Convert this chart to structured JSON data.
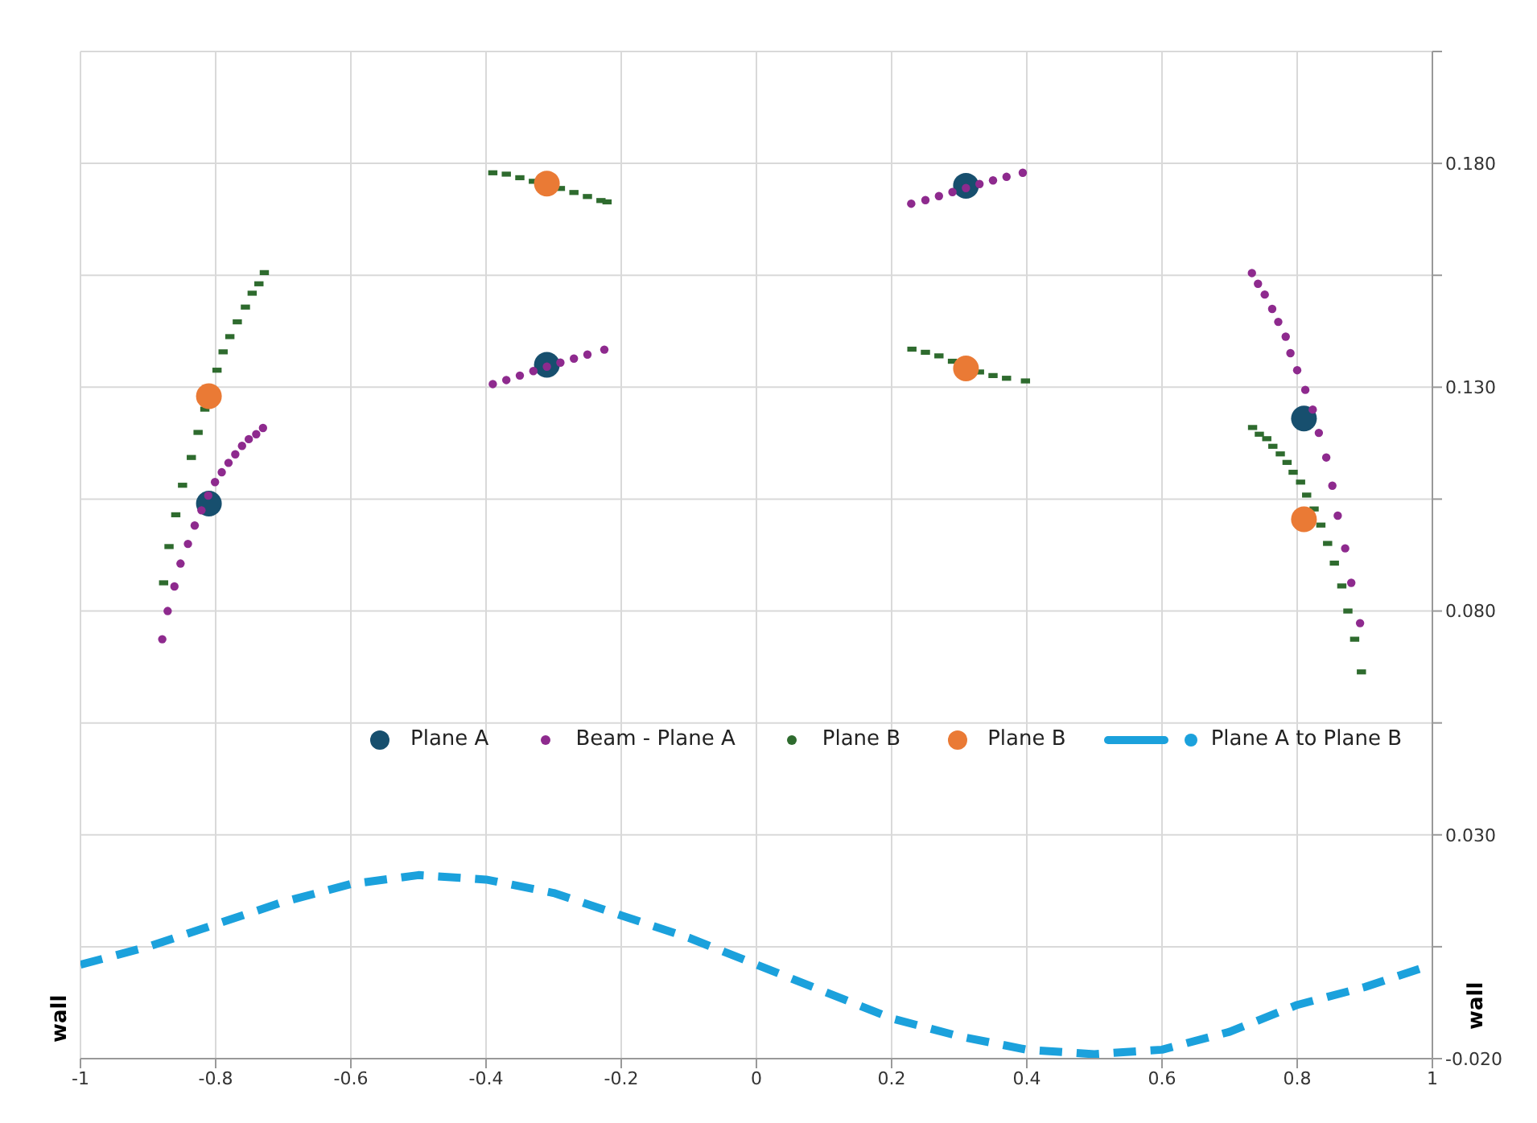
{
  "chart_data": {
    "type": "scatter",
    "ylabel": "wall",
    "y2label": "wall",
    "xlim": [
      -1,
      1
    ],
    "xticks": [
      -1,
      -0.8,
      -0.6,
      -0.4,
      -0.2,
      0,
      0.2,
      0.4,
      0.6,
      0.8,
      1
    ],
    "ylim": [
      -0.02,
      0.205
    ],
    "yticks": [
      {
        "value": -0.02,
        "label": "-0.020"
      },
      {
        "value": 0.005,
        "label": null
      },
      {
        "value": 0.03,
        "label": "0.030"
      },
      {
        "value": 0.055,
        "label": null
      },
      {
        "value": 0.08,
        "label": "0.080"
      },
      {
        "value": 0.105,
        "label": null
      },
      {
        "value": 0.13,
        "label": "0.130"
      },
      {
        "value": 0.155,
        "label": null
      },
      {
        "value": 0.18,
        "label": "0.180"
      },
      {
        "value": 0.205,
        "label": null
      }
    ],
    "grid": true,
    "legend": "center",
    "series": [
      {
        "name": "Plane A",
        "marker": "circle",
        "color": "#174f6e",
        "x": [
          -0.81,
          -0.31,
          0.31,
          0.81
        ],
        "values": [
          0.104,
          0.135,
          0.175,
          0.123
        ]
      },
      {
        "name": "Beam - Plane A",
        "marker": "circle",
        "color": "#8e2a8e",
        "x": [
          -0.879,
          -0.871,
          -0.861,
          -0.852,
          -0.841,
          -0.831,
          -0.821,
          -0.811,
          -0.801,
          -0.791,
          -0.781,
          -0.771,
          -0.761,
          -0.751,
          -0.74,
          -0.73,
          -0.39,
          -0.37,
          -0.35,
          -0.33,
          -0.31,
          -0.29,
          -0.27,
          -0.25,
          -0.225,
          0.229,
          0.25,
          0.27,
          0.29,
          0.31,
          0.33,
          0.35,
          0.37,
          0.394,
          0.733,
          0.742,
          0.752,
          0.763,
          0.772,
          0.783,
          0.79,
          0.8,
          0.812,
          0.823,
          0.832,
          0.843,
          0.852,
          0.86,
          0.871,
          0.88,
          0.893
        ],
        "values": [
          0.0737,
          0.08,
          0.0855,
          0.0906,
          0.095,
          0.0991,
          0.1025,
          0.1058,
          0.1088,
          0.111,
          0.1131,
          0.115,
          0.1169,
          0.1184,
          0.1195,
          0.1209,
          0.1307,
          0.1316,
          0.1326,
          0.1336,
          0.1346,
          0.1355,
          0.1364,
          0.1373,
          0.1384,
          0.171,
          0.1718,
          0.1727,
          0.1736,
          0.1745,
          0.1754,
          0.1762,
          0.177,
          0.1779,
          0.1555,
          0.1531,
          0.1507,
          0.1475,
          0.1446,
          0.1413,
          0.1376,
          0.1338,
          0.1294,
          0.125,
          0.1198,
          0.1143,
          0.108,
          0.1013,
          0.094,
          0.0863,
          0.0773
        ]
      },
      {
        "name": "Plane B",
        "marker": "square",
        "color": "#2e6b2e",
        "x": [
          -0.877,
          -0.869,
          -0.859,
          -0.849,
          -0.836,
          -0.826,
          -0.816,
          -0.798,
          -0.789,
          -0.779,
          -0.768,
          -0.756,
          -0.746,
          -0.736,
          -0.728,
          -0.39,
          -0.37,
          -0.35,
          -0.33,
          -0.29,
          -0.27,
          -0.25,
          -0.23,
          -0.221,
          0.23,
          0.25,
          0.27,
          0.29,
          0.33,
          0.35,
          0.37,
          0.398,
          0.734,
          0.744,
          0.755,
          0.764,
          0.775,
          0.785,
          0.794,
          0.805,
          0.814,
          0.825,
          0.835,
          0.845,
          0.855,
          0.866,
          0.875,
          0.885,
          0.895
        ],
        "values": [
          0.0863,
          0.0944,
          0.1015,
          0.1081,
          0.1143,
          0.1199,
          0.1251,
          0.1338,
          0.1379,
          0.1413,
          0.1446,
          0.1479,
          0.151,
          0.1531,
          0.1556,
          0.1779,
          0.1776,
          0.1768,
          0.176,
          0.1744,
          0.1735,
          0.1726,
          0.1717,
          0.1714,
          0.1385,
          0.1378,
          0.137,
          0.1358,
          0.1334,
          0.1326,
          0.132,
          0.1314,
          0.121,
          0.1195,
          0.1185,
          0.1168,
          0.1151,
          0.1132,
          0.111,
          0.1088,
          0.1059,
          0.1028,
          0.0992,
          0.0951,
          0.0907,
          0.0856,
          0.08,
          0.0737,
          0.0664
        ]
      },
      {
        "name": "Plane B",
        "marker": "circle",
        "color": "#ea7a35",
        "x": [
          -0.81,
          -0.31,
          0.31,
          0.81
        ],
        "values": [
          0.128,
          0.1755,
          0.1342,
          0.1005
        ]
      },
      {
        "name": "Plane A to Plane B",
        "type": "line",
        "line_style": "dashed",
        "marker": "none",
        "color": "#1ba1dc",
        "x": [
          -1,
          -0.9,
          -0.8,
          -0.7,
          -0.6,
          -0.5,
          -0.4,
          -0.3,
          -0.2,
          -0.1,
          0,
          0.1,
          0.2,
          0.3,
          0.4,
          0.5,
          0.6,
          0.7,
          0.8,
          0.9,
          1
        ],
        "values": [
          0.001,
          0.005,
          0.01,
          0.015,
          0.019,
          0.021,
          0.02,
          0.017,
          0.012,
          0.007,
          0.001,
          -0.005,
          -0.011,
          -0.015,
          -0.018,
          -0.019,
          -0.018,
          -0.014,
          -0.008,
          -0.004,
          0.001
        ]
      }
    ]
  }
}
